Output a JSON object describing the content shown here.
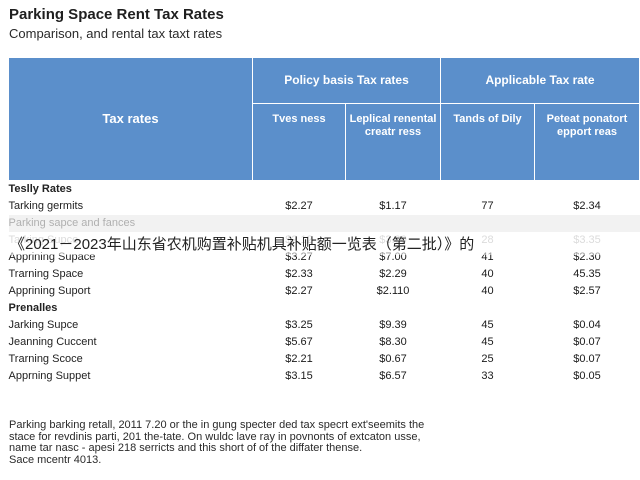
{
  "header": {
    "title": "Parking Space Rent Tax Rates",
    "subtitle": "Comparison, and rental tax taxt rates"
  },
  "table": {
    "corner_header": "Tax rates",
    "groups": [
      "Policy basis Tax rates",
      "Applicable Tax rate"
    ],
    "subheaders": [
      "Tves ness",
      "Leplical renental creatr ress",
      "Tands of Dily",
      "Peteat ponatort epport reas"
    ],
    "rows": [
      {
        "label": "Teslly Rates",
        "values": [
          "",
          "",
          "",
          ""
        ],
        "kind": "section"
      },
      {
        "label": "Tarking germits",
        "values": [
          "$2.27",
          "$1.17",
          "77",
          "$2.34"
        ],
        "kind": "data"
      },
      {
        "label": "Parking sapce and fances",
        "values": [
          "",
          "",
          "",
          ""
        ],
        "kind": "faded"
      },
      {
        "label": "Tarking Supce",
        "values": [
          "$2.12",
          "$3.00",
          "28",
          "$3.35"
        ],
        "kind": "faded"
      },
      {
        "label": "Apprining Supace",
        "values": [
          "$3.27",
          "$7.00",
          "41",
          "$2.30"
        ],
        "kind": "data"
      },
      {
        "label": "Trarning Space",
        "values": [
          "$2.33",
          "$2.29",
          "40",
          "45.35"
        ],
        "kind": "data"
      },
      {
        "label": "Apprining Suport",
        "values": [
          "$2.27",
          "$2.110",
          "40",
          "$2.57"
        ],
        "kind": "data"
      },
      {
        "label": "Prenalles",
        "values": [
          "",
          "",
          "",
          ""
        ],
        "kind": "section"
      },
      {
        "label": "Jarking Supce",
        "values": [
          "$3.25",
          "$9.39",
          "45",
          "$0.04"
        ],
        "kind": "data"
      },
      {
        "label": "Jeanning Cuccent",
        "values": [
          "$5.67",
          "$8.30",
          "45",
          "$0.07"
        ],
        "kind": "data"
      },
      {
        "label": "Trarning Scoce",
        "values": [
          "$2.21",
          "$0.67",
          "25",
          "$0.07"
        ],
        "kind": "data"
      },
      {
        "label": "Apprning Suppet",
        "values": [
          "$3.15",
          "$6.57",
          "33",
          "$0.05"
        ],
        "kind": "data"
      }
    ]
  },
  "overlay_banner": "《2021－2023年山东省农机购置补贴机具补贴额一览表（第二批）》的",
  "footnote": [
    "Parking barking retall, 2011 7.20 or the in gung specter ded tax specrt ext'seemits the",
    "stace for revdinis parti, 201 the-tate. On wuldc lave ray in povnonts of extcaton usse,",
    "name tar nasc - apesi 218 serricts and this short of of the diffater thense.",
    "Sace mcentr 4013."
  ],
  "colors": {
    "header_blue": "#5b8fcb",
    "header_text": "#ffffff",
    "faded_text": "#b0b0b0"
  }
}
